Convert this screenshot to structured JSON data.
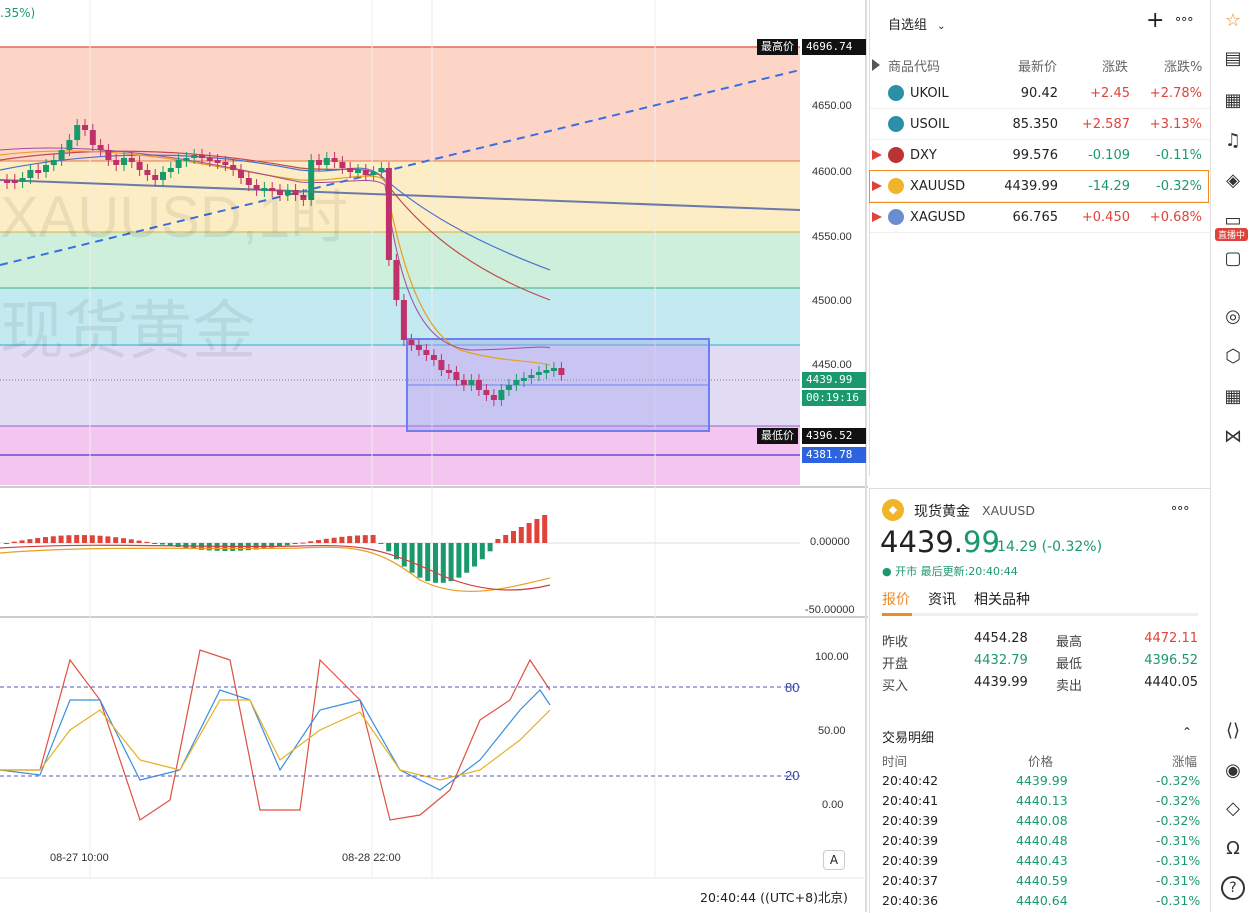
{
  "chart": {
    "top_left_text": ".35%)",
    "watermark_symbol": "XAUUSD,1时",
    "watermark_name": "现货黄金",
    "high_label": "最高价",
    "high_value": "4696.74",
    "low_label": "最低价",
    "low_value": "4396.52",
    "level_4381": "4381.78",
    "last_price": "4439.99",
    "countdown": "00:19:16",
    "price_ticks": [
      "4650.00",
      "4600.00",
      "4550.00",
      "4500.00",
      "4450.00"
    ],
    "macd_ticks": [
      "0.00000",
      "-50.00000"
    ],
    "stoch_ticks": [
      "100.00",
      "50.00",
      "0.00"
    ],
    "stoch_levels": [
      "80",
      "20"
    ],
    "time_ticks": [
      "08-27 10:00",
      "08-28 22:00"
    ],
    "auto_btn": "A",
    "clock": "20:40:44  ((UTC+8)北京)"
  },
  "watchlist": {
    "title": "自选组",
    "add_label": "+",
    "more_label": "∘∘∘",
    "columns": [
      "商品代码",
      "最新价",
      "涨跌",
      "涨跌%"
    ],
    "rows": [
      {
        "symbol": "UKOIL",
        "price": "90.42",
        "change": "+2.45",
        "pct": "+2.78%",
        "dir": "up"
      },
      {
        "symbol": "USOIL",
        "price": "85.350",
        "change": "+2.587",
        "pct": "+3.13%",
        "dir": "up"
      },
      {
        "symbol": "DXY",
        "price": "99.576",
        "change": "-0.109",
        "pct": "-0.11%",
        "dir": "down"
      },
      {
        "symbol": "XAUUSD",
        "price": "4439.99",
        "change": "-14.29",
        "pct": "-0.32%",
        "dir": "down"
      },
      {
        "symbol": "XAGUSD",
        "price": "66.765",
        "change": "+0.450",
        "pct": "+0.68%",
        "dir": "up"
      }
    ]
  },
  "detail": {
    "name": "现货黄金",
    "code": "XAUUSD",
    "price_main": "4439.",
    "price_dec": "99",
    "change": "-14.29 (-0.32%)",
    "status": "● 开市  最后更新:20:40:44",
    "tabs": [
      "报价",
      "资讯",
      "相关品种"
    ],
    "quotes": [
      {
        "label": "昨收",
        "value": "4454.28",
        "label2": "最高",
        "value2": "4472.11"
      },
      {
        "label": "开盘",
        "value": "4432.79",
        "label2": "最低",
        "value2": "4396.52"
      },
      {
        "label": "买入",
        "value": "4439.99",
        "label2": "卖出",
        "value2": "4440.05"
      }
    ],
    "trades_title": "交易明细",
    "trade_cols": [
      "时间",
      "价格",
      "涨幅"
    ],
    "trades": [
      {
        "time": "20:40:42",
        "price": "4439.99",
        "pct": "-0.32%"
      },
      {
        "time": "20:40:41",
        "price": "4440.13",
        "pct": "-0.32%"
      },
      {
        "time": "20:40:39",
        "price": "4440.08",
        "pct": "-0.32%"
      },
      {
        "time": "20:40:39",
        "price": "4440.48",
        "pct": "-0.31%"
      },
      {
        "time": "20:40:39",
        "price": "4440.43",
        "pct": "-0.31%"
      },
      {
        "time": "20:40:37",
        "price": "4440.59",
        "pct": "-0.31%"
      },
      {
        "time": "20:40:36",
        "price": "4440.64",
        "pct": "-0.31%"
      }
    ]
  },
  "toolbar": {
    "live_badge": "直播中",
    "help": "?"
  },
  "colors": {
    "up": "#e0433a",
    "down": "#1a9a6c",
    "accent": "#f08a24"
  }
}
